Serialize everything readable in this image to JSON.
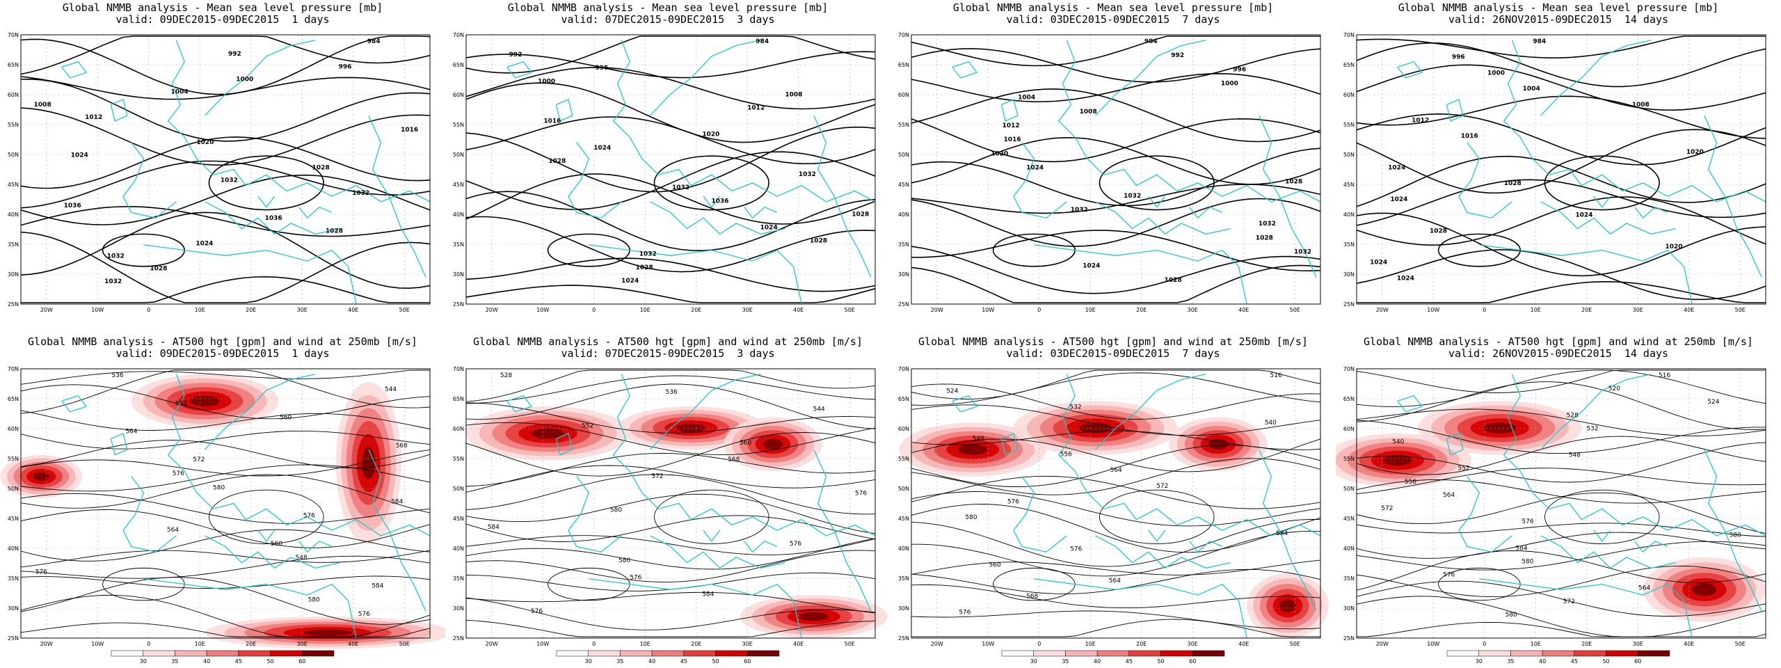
{
  "top_titles": [
    {
      "line1": "Global NMMB analysis - Mean sea level pressure [mb]",
      "line2": "valid: 09DEC2015-09DEC2015  1 days"
    },
    {
      "line1": "Global NMMB analysis - Mean sea level pressure [mb]",
      "line2": "valid: 07DEC2015-09DEC2015  3 days"
    },
    {
      "line1": "Global NMMB analysis - Mean sea level pressure [mb]",
      "line2": "valid: 03DEC2015-09DEC2015  7 days"
    },
    {
      "line1": "Global NMMB analysis - Mean sea level pressure [mb]",
      "line2": "valid: 26NOV2015-09DEC2015  14 days"
    }
  ],
  "bottom_titles": [
    {
      "line1": "Global NMMB analysis - AT500 hgt [gpm] and wind at 250mb [m/s]",
      "line2": "valid: 09DEC2015-09DEC2015  1 days"
    },
    {
      "line1": "Global NMMB analysis - AT500 hgt [gpm] and wind at 250mb [m/s]",
      "line2": "valid: 07DEC2015-09DEC2015  3 days"
    },
    {
      "line1": "Global NMMB analysis - AT500 hgt [gpm] and wind at 250mb [m/s]",
      "line2": "valid: 03DEC2015-09DEC2015  7 days"
    },
    {
      "line1": "Global NMMB analysis - AT500 hgt [gpm] and wind at 250mb [m/s]",
      "line2": "valid: 26NOV2015-09DEC2015  14 days"
    }
  ],
  "lat_ticks": [
    "70N",
    "65N",
    "60N",
    "55N",
    "50N",
    "45N",
    "40N",
    "35N",
    "30N",
    "25N"
  ],
  "lon_ticks": [
    "20W",
    "10W",
    "0",
    "10E",
    "20E",
    "30E",
    "40E",
    "50E"
  ],
  "colorbar": {
    "labels": [
      "30",
      "35",
      "40",
      "45",
      "50",
      "60"
    ],
    "colors": [
      "#ffffff",
      "#fcdcdc",
      "#f8b4b4",
      "#f07c7c",
      "#e63c3c",
      "#d40000",
      "#780000"
    ]
  },
  "colors": {
    "coast": "#20c8c8",
    "contour": "#000000",
    "grid": "#aaaaaa"
  },
  "top_labels": [
    [
      "984",
      "992",
      "996",
      "1000",
      "1004",
      "1008",
      "1012",
      "1016",
      "1020",
      "1024",
      "1028",
      "1032",
      "1032",
      "1036",
      "1036",
      "1028",
      "1024",
      "1032",
      "1028",
      "1032"
    ],
    [
      "984",
      "992",
      "996",
      "1000",
      "1008",
      "1012",
      "1016",
      "1020",
      "1024",
      "1028",
      "1032",
      "1032",
      "1036",
      "1028",
      "1024",
      "1028",
      "1032",
      "1028",
      "1024"
    ],
    [
      "984",
      "992",
      "996",
      "1000",
      "1004",
      "1008",
      "1012",
      "1016",
      "1020",
      "1024",
      "1028",
      "1032",
      "1032",
      "1032",
      "1028",
      "1032",
      "1024",
      "1028"
    ],
    [
      "984",
      "996",
      "1000",
      "1004",
      "1008",
      "1012",
      "1016",
      "1020",
      "1024",
      "1028",
      "1024",
      "1024",
      "1028",
      "1020",
      "1024",
      "1024"
    ]
  ],
  "bottom_labels": [
    [
      "536",
      "544",
      "552",
      "560",
      "564",
      "568",
      "572",
      "576",
      "580",
      "584",
      "576",
      "564",
      "560",
      "548",
      "576",
      "584",
      "580",
      "576"
    ],
    [
      "528",
      "536",
      "544",
      "552",
      "560",
      "568",
      "572",
      "576",
      "580",
      "584",
      "576",
      "580",
      "576",
      "584",
      "576"
    ],
    [
      "516",
      "524",
      "532",
      "540",
      "548",
      "556",
      "564",
      "572",
      "576",
      "580",
      "584",
      "576",
      "560",
      "564",
      "568",
      "576"
    ],
    [
      "516",
      "520",
      "524",
      "528",
      "532",
      "540",
      "548",
      "552",
      "556",
      "564",
      "572",
      "576",
      "580",
      "584",
      "580",
      "576",
      "564",
      "572",
      "580"
    ]
  ]
}
